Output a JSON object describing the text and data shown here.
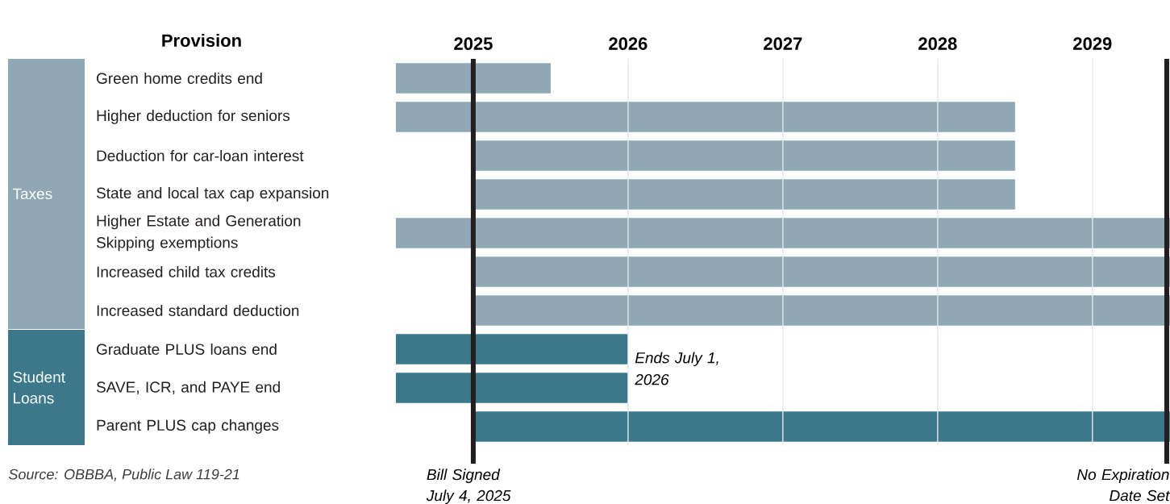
{
  "chart_data": {
    "type": "bar",
    "orientation": "horizontal",
    "ylabel": "Provision",
    "categories": [
      "Green home credits end",
      "Higher deduction for seniors",
      "Deduction for car-loan interest",
      "State and local tax cap expansion",
      "Higher Estate and Generation Skipping exemptions",
      "Increased child tax credits",
      "Increased standard deduction",
      "Graduate PLUS loans end",
      "SAVE, ICR, and PAYE end",
      "Parent PLUS cap changes"
    ],
    "series": [
      {
        "name": "Taxes",
        "color": "#8fa8b4",
        "base": [
          2024.5,
          2024.5,
          2025,
          2025,
          2024.5,
          2025,
          2025,
          null,
          null,
          null
        ],
        "values": [
          1,
          4,
          3.5,
          3.5,
          5,
          4.5,
          4.5,
          null,
          null,
          null
        ]
      },
      {
        "name": "Student Loans",
        "color": "#3b788c",
        "base": [
          null,
          null,
          null,
          null,
          null,
          null,
          null,
          2024.5,
          2024.5,
          2025
        ],
        "values": [
          null,
          null,
          null,
          null,
          null,
          null,
          null,
          1.5,
          1.5,
          4.5
        ]
      }
    ],
    "xlim": [
      2024.5,
      2029.5
    ],
    "xticks": [
      2025,
      2026,
      2027,
      2028,
      2029
    ],
    "grid": "x",
    "ref_lines": [
      {
        "axis": "x",
        "value": 2025,
        "label": "Bill Signed July 4, 2025",
        "color": "#231f20"
      },
      {
        "axis": "x",
        "value": 2029.48,
        "label": "No Expiration Date Set",
        "color": "#231f20"
      }
    ],
    "annotations": [
      "Ends July 1, 2026",
      "Source: OBBBA, Public Law 119-21"
    ]
  }
}
